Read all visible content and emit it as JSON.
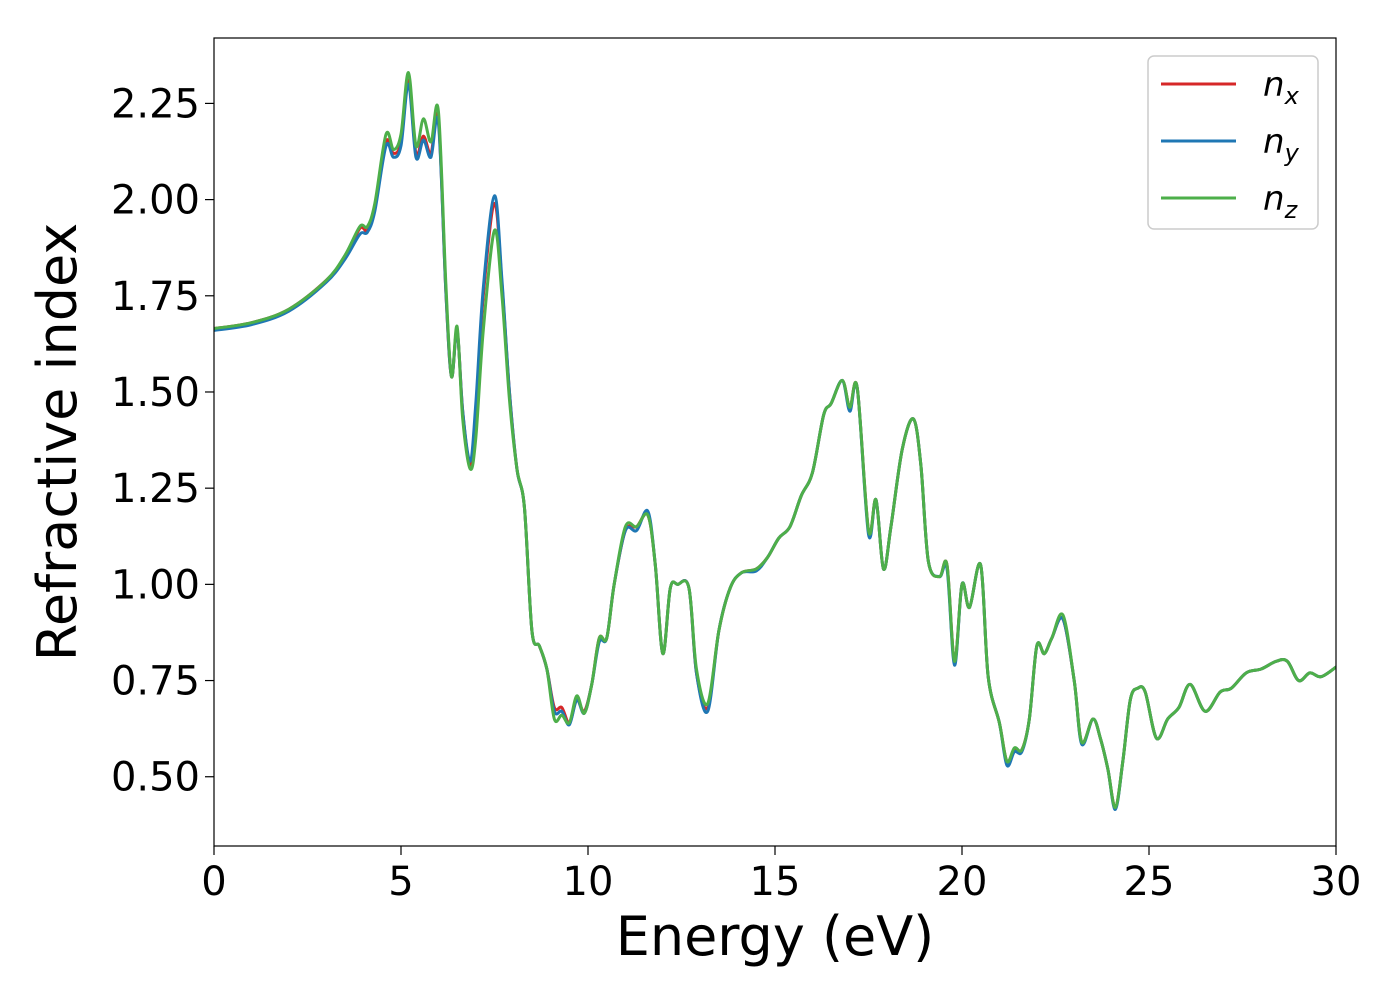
{
  "chart_data": {
    "type": "line",
    "xlabel": "Energy (eV)",
    "ylabel": "Refractive index",
    "xlim": [
      0,
      30
    ],
    "ylim": [
      0.32,
      2.42
    ],
    "grid": false,
    "legend_position": "top-right",
    "x_ticks": [
      0,
      5,
      10,
      15,
      20,
      25,
      30
    ],
    "x_tick_labels": [
      "0",
      "5",
      "10",
      "15",
      "20",
      "25",
      "30"
    ],
    "y_ticks": [
      0.5,
      0.75,
      1.0,
      1.25,
      1.5,
      1.75,
      2.0,
      2.25
    ],
    "y_tick_labels": [
      "0.50",
      "0.75",
      "1.00",
      "1.25",
      "1.50",
      "1.75",
      "2.00",
      "2.25"
    ],
    "x": [
      0,
      1,
      2,
      3,
      3.5,
      3.9,
      4.1,
      4.3,
      4.6,
      4.8,
      5.0,
      5.2,
      5.4,
      5.6,
      5.8,
      6.0,
      6.2,
      6.35,
      6.5,
      6.65,
      6.85,
      7.0,
      7.2,
      7.5,
      7.7,
      7.9,
      8.1,
      8.3,
      8.5,
      8.7,
      8.9,
      9.1,
      9.3,
      9.5,
      9.7,
      9.9,
      10.1,
      10.3,
      10.5,
      10.7,
      11.0,
      11.3,
      11.6,
      11.8,
      12.0,
      12.2,
      12.4,
      12.7,
      12.9,
      13.2,
      13.5,
      13.8,
      14.1,
      14.5,
      14.8,
      15.1,
      15.4,
      15.7,
      16.0,
      16.3,
      16.5,
      16.8,
      17.0,
      17.2,
      17.5,
      17.7,
      17.9,
      18.1,
      18.4,
      18.7,
      18.9,
      19.1,
      19.4,
      19.6,
      19.8,
      20.0,
      20.2,
      20.5,
      20.7,
      21.0,
      21.2,
      21.4,
      21.6,
      21.8,
      22.0,
      22.2,
      22.4,
      22.7,
      23.0,
      23.2,
      23.5,
      23.7,
      23.9,
      24.1,
      24.3,
      24.5,
      24.7,
      24.9,
      25.2,
      25.5,
      25.8,
      26.1,
      26.5,
      26.9,
      27.2,
      27.6,
      28.0,
      28.4,
      28.7,
      29.0,
      29.3,
      29.6,
      30.0
    ],
    "series": [
      {
        "name": "n",
        "name_sub": "x",
        "color": "#d62728",
        "values": [
          1.665,
          1.68,
          1.715,
          1.79,
          1.85,
          1.925,
          1.92,
          1.98,
          2.15,
          2.12,
          2.15,
          2.31,
          2.12,
          2.165,
          2.12,
          2.21,
          1.76,
          1.54,
          1.66,
          1.45,
          1.31,
          1.45,
          1.75,
          1.99,
          1.78,
          1.5,
          1.3,
          1.2,
          0.88,
          0.84,
          0.78,
          0.68,
          0.68,
          0.64,
          0.7,
          0.67,
          0.74,
          0.86,
          0.86,
          1.0,
          1.14,
          1.15,
          1.18,
          1.05,
          0.82,
          0.99,
          1.0,
          0.99,
          0.77,
          0.68,
          0.88,
          0.99,
          1.03,
          1.04,
          1.07,
          1.12,
          1.15,
          1.23,
          1.29,
          1.44,
          1.47,
          1.53,
          1.46,
          1.51,
          1.14,
          1.22,
          1.04,
          1.15,
          1.35,
          1.43,
          1.31,
          1.06,
          1.02,
          1.05,
          0.8,
          1.0,
          0.94,
          1.05,
          0.76,
          0.64,
          0.54,
          0.57,
          0.57,
          0.65,
          0.84,
          0.82,
          0.86,
          0.91,
          0.75,
          0.59,
          0.65,
          0.6,
          0.52,
          0.42,
          0.54,
          0.7,
          0.73,
          0.72,
          0.6,
          0.65,
          0.68,
          0.74,
          0.67,
          0.72,
          0.73,
          0.77,
          0.78,
          0.8,
          0.8,
          0.75,
          0.77,
          0.76,
          0.785
        ]
      },
      {
        "name": "n",
        "name_sub": "y",
        "color": "#1f77b4",
        "values": [
          1.66,
          1.675,
          1.71,
          1.785,
          1.845,
          1.91,
          1.915,
          1.97,
          2.14,
          2.11,
          2.14,
          2.3,
          2.11,
          2.155,
          2.11,
          2.2,
          1.76,
          1.54,
          1.66,
          1.45,
          1.32,
          1.47,
          1.77,
          2.01,
          1.79,
          1.5,
          1.3,
          1.2,
          0.88,
          0.84,
          0.78,
          0.67,
          0.67,
          0.635,
          0.7,
          0.665,
          0.74,
          0.85,
          0.86,
          1.0,
          1.14,
          1.14,
          1.19,
          1.05,
          0.82,
          0.99,
          1.0,
          0.99,
          0.77,
          0.67,
          0.88,
          0.99,
          1.03,
          1.035,
          1.07,
          1.12,
          1.15,
          1.23,
          1.29,
          1.44,
          1.47,
          1.53,
          1.45,
          1.51,
          1.13,
          1.22,
          1.04,
          1.15,
          1.35,
          1.43,
          1.31,
          1.06,
          1.02,
          1.04,
          0.79,
          1.0,
          0.94,
          1.05,
          0.76,
          0.64,
          0.53,
          0.565,
          0.565,
          0.65,
          0.84,
          0.82,
          0.86,
          0.91,
          0.75,
          0.585,
          0.65,
          0.6,
          0.52,
          0.415,
          0.54,
          0.7,
          0.73,
          0.72,
          0.6,
          0.65,
          0.68,
          0.74,
          0.67,
          0.72,
          0.73,
          0.77,
          0.78,
          0.8,
          0.8,
          0.75,
          0.77,
          0.76,
          0.785
        ]
      },
      {
        "name": "n",
        "name_sub": "z",
        "color": "#4daf4a",
        "values": [
          1.665,
          1.68,
          1.715,
          1.79,
          1.855,
          1.93,
          1.93,
          1.99,
          2.17,
          2.13,
          2.17,
          2.33,
          2.14,
          2.21,
          2.15,
          2.23,
          1.78,
          1.54,
          1.67,
          1.43,
          1.3,
          1.38,
          1.66,
          1.92,
          1.75,
          1.48,
          1.3,
          1.2,
          0.88,
          0.84,
          0.78,
          0.65,
          0.66,
          0.64,
          0.71,
          0.665,
          0.74,
          0.86,
          0.86,
          1.0,
          1.15,
          1.15,
          1.18,
          1.05,
          0.82,
          0.99,
          1.0,
          0.99,
          0.78,
          0.69,
          0.88,
          0.99,
          1.03,
          1.04,
          1.07,
          1.12,
          1.15,
          1.23,
          1.29,
          1.44,
          1.47,
          1.53,
          1.46,
          1.51,
          1.14,
          1.22,
          1.04,
          1.15,
          1.35,
          1.43,
          1.31,
          1.06,
          1.02,
          1.05,
          0.8,
          1.0,
          0.94,
          1.05,
          0.76,
          0.64,
          0.54,
          0.575,
          0.57,
          0.65,
          0.84,
          0.82,
          0.86,
          0.92,
          0.75,
          0.59,
          0.65,
          0.6,
          0.52,
          0.42,
          0.54,
          0.7,
          0.73,
          0.72,
          0.6,
          0.65,
          0.68,
          0.74,
          0.67,
          0.72,
          0.73,
          0.77,
          0.78,
          0.8,
          0.8,
          0.75,
          0.77,
          0.76,
          0.785
        ]
      }
    ]
  }
}
